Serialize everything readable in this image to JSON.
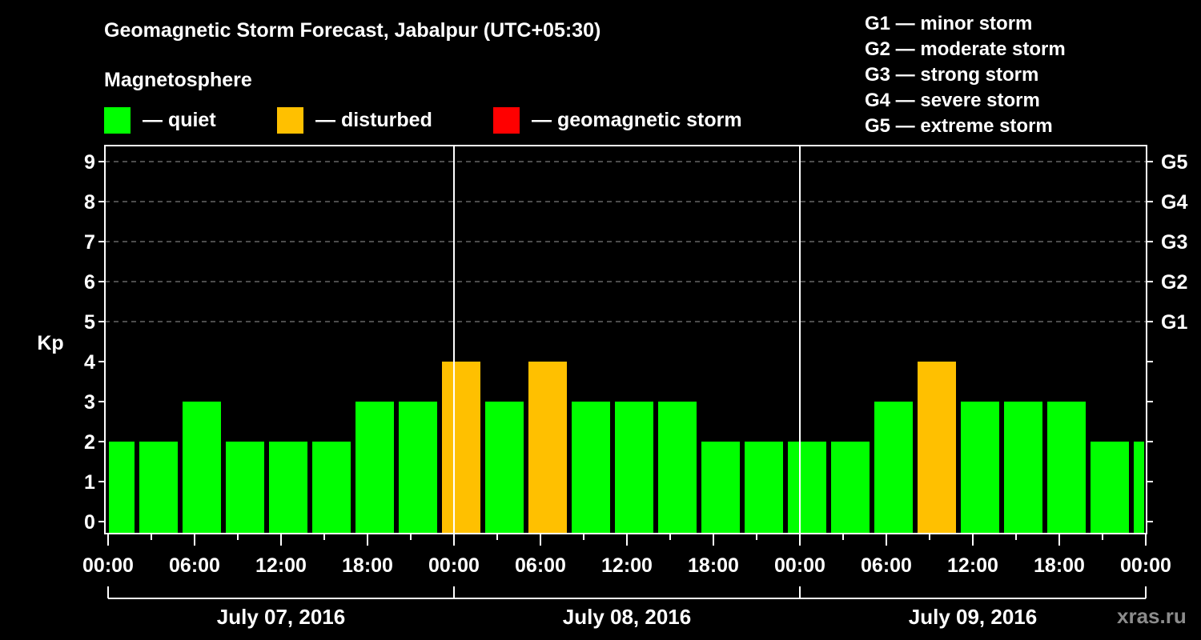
{
  "header": {
    "title": "Geomagnetic Storm Forecast, Jabalpur (UTC+05:30)",
    "subtitle": "Magnetosphere"
  },
  "legend": [
    {
      "label": "— quiet",
      "color": "#00ff00"
    },
    {
      "label": "— disturbed",
      "color": "#ffc000"
    },
    {
      "label": "— geomagnetic storm",
      "color": "#ff0000"
    }
  ],
  "storm_scale": [
    "G1 — minor storm",
    "G2 — moderate storm",
    "G3 — strong storm",
    "G4 — severe storm",
    "G5 — extreme storm"
  ],
  "watermark": "xras.ru",
  "chart_data": {
    "type": "bar",
    "title": "Geomagnetic Storm Forecast, Jabalpur (UTC+05:30)",
    "xlabel": "",
    "ylabel": "Kp",
    "ylim": [
      0,
      9
    ],
    "yticks": [
      0,
      1,
      2,
      3,
      4,
      5,
      6,
      7,
      8,
      9
    ],
    "right_axis_labels": [
      {
        "kp": 5,
        "label": "G1"
      },
      {
        "kp": 6,
        "label": "G2"
      },
      {
        "kp": 7,
        "label": "G3"
      },
      {
        "kp": 8,
        "label": "G4"
      },
      {
        "kp": 9,
        "label": "G5"
      }
    ],
    "xtick_labels": [
      "00:00",
      "06:00",
      "12:00",
      "18:00",
      "00:00",
      "06:00",
      "12:00",
      "18:00",
      "00:00",
      "06:00",
      "12:00",
      "18:00",
      "00:00"
    ],
    "day_labels": [
      "July 07, 2016",
      "July 08, 2016",
      "July 09, 2016"
    ],
    "grid": "dashed horizontal at each integer Kp 5-9",
    "values": [
      2,
      2,
      3,
      2,
      2,
      2,
      3,
      3,
      4,
      3,
      4,
      3,
      3,
      3,
      2,
      2,
      2,
      2,
      3,
      4,
      3,
      3,
      3,
      2,
      2
    ],
    "status": [
      "quiet",
      "quiet",
      "quiet",
      "quiet",
      "quiet",
      "quiet",
      "quiet",
      "quiet",
      "disturbed",
      "quiet",
      "disturbed",
      "quiet",
      "quiet",
      "quiet",
      "quiet",
      "quiet",
      "quiet",
      "quiet",
      "quiet",
      "disturbed",
      "quiet",
      "quiet",
      "quiet",
      "quiet",
      "quiet"
    ],
    "colors": {
      "quiet": "#00ff00",
      "disturbed": "#ffc000",
      "storm": "#ff0000"
    }
  }
}
